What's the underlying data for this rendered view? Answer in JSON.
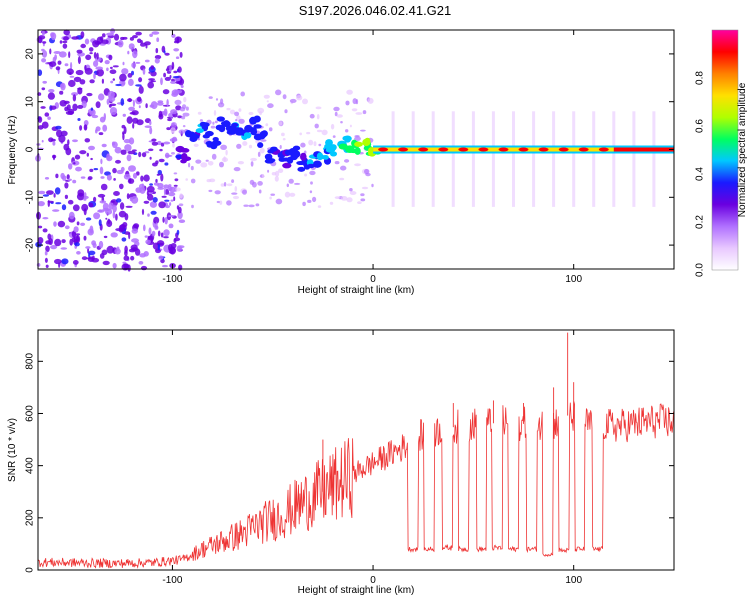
{
  "title": "S197.2026.046.02.41.G21",
  "chart_data": [
    {
      "type": "heatmap",
      "name": "spectrogram",
      "xlabel": "Height of straight line (km)",
      "ylabel": "Frequency (Hz)",
      "xlim": [
        -167,
        150
      ],
      "ylim": [
        -25,
        25
      ],
      "x_ticks": [
        -100,
        0,
        100
      ],
      "y_ticks": [
        20,
        10,
        0,
        -10,
        -20
      ],
      "colorbar": {
        "label": "Normalized spectral amplitude",
        "range": [
          0,
          1
        ],
        "ticks": [
          "0.0",
          "0.2",
          "0.4",
          "0.6",
          "0.8"
        ],
        "tick_values": [
          0,
          0.2,
          0.4,
          0.6,
          0.8
        ],
        "colors": [
          "#ffffff",
          "#e8c8ff",
          "#b070ff",
          "#6a00e0",
          "#1a1aff",
          "#00c8ff",
          "#00ff60",
          "#b0ff00",
          "#ffe000",
          "#ff8000",
          "#ff0000",
          "#ff00a0"
        ]
      },
      "ridge": [
        {
          "x": -95,
          "y": -1,
          "a": 0.25
        },
        {
          "x": -90,
          "y": 3,
          "a": 0.3
        },
        {
          "x": -85,
          "y": 4,
          "a": 0.32
        },
        {
          "x": -80,
          "y": 2,
          "a": 0.3
        },
        {
          "x": -75,
          "y": 5,
          "a": 0.33
        },
        {
          "x": -70,
          "y": 4,
          "a": 0.32
        },
        {
          "x": -65,
          "y": 3,
          "a": 0.34
        },
        {
          "x": -60,
          "y": 5,
          "a": 0.32
        },
        {
          "x": -55,
          "y": 2,
          "a": 0.3
        },
        {
          "x": -50,
          "y": -1,
          "a": 0.3
        },
        {
          "x": -45,
          "y": -2,
          "a": 0.3
        },
        {
          "x": -40,
          "y": -1,
          "a": 0.32
        },
        {
          "x": -35,
          "y": -3,
          "a": 0.3
        },
        {
          "x": -30,
          "y": -2,
          "a": 0.35
        },
        {
          "x": -25,
          "y": -1,
          "a": 0.38
        },
        {
          "x": -20,
          "y": 0,
          "a": 0.42
        },
        {
          "x": -15,
          "y": 1,
          "a": 0.45
        },
        {
          "x": -10,
          "y": 0,
          "a": 0.5
        },
        {
          "x": -5,
          "y": 1,
          "a": 0.55
        },
        {
          "x": 0,
          "y": 0,
          "a": 0.55
        }
      ],
      "harmonic_lines_x": [
        10,
        20,
        30,
        40,
        50,
        60,
        70,
        80,
        90,
        100,
        110,
        120,
        130,
        140
      ]
    },
    {
      "type": "line",
      "name": "snr",
      "xlabel": "Height of straight line (km)",
      "ylabel": "SNR (10 * v/v)",
      "xlim": [
        -167,
        150
      ],
      "ylim": [
        0,
        920
      ],
      "x_ticks": [
        -100,
        0,
        100
      ],
      "y_ticks": [
        0,
        200,
        400,
        600,
        800
      ],
      "color": "#ee3333",
      "series": [
        {
          "name": "SNR",
          "x": [
            -167,
            -150,
            -130,
            -110,
            -95,
            -85,
            -75,
            -65,
            -55,
            -45,
            -35,
            -25,
            -15,
            -5,
            5,
            15,
            20,
            25,
            35,
            45,
            55,
            65,
            75,
            85,
            90,
            95,
            100,
            105,
            110,
            115,
            120,
            130,
            140,
            150
          ],
          "y": [
            30,
            28,
            25,
            28,
            40,
            80,
            110,
            140,
            180,
            210,
            260,
            300,
            340,
            390,
            430,
            470,
            500,
            520,
            540,
            555,
            560,
            565,
            560,
            555,
            560,
            600,
            580,
            560,
            560,
            560,
            550,
            560,
            570,
            570
          ]
        }
      ],
      "dropouts": [
        {
          "x": 20,
          "y": 80
        },
        {
          "x": 28,
          "y": 80
        },
        {
          "x": 37,
          "y": 85
        },
        {
          "x": 45,
          "y": 80
        },
        {
          "x": 54,
          "y": 80
        },
        {
          "x": 62,
          "y": 85
        },
        {
          "x": 70,
          "y": 80
        },
        {
          "x": 79,
          "y": 80
        },
        {
          "x": 87,
          "y": 60
        },
        {
          "x": 95,
          "y": 75
        },
        {
          "x": 103,
          "y": 80
        },
        {
          "x": 112,
          "y": 80
        }
      ],
      "spikes": [
        {
          "x": -25,
          "y": 500
        },
        {
          "x": 97,
          "y": 910
        },
        {
          "x": 90,
          "y": 700
        },
        {
          "x": 100,
          "y": 720
        },
        {
          "x": 40,
          "y": 640
        },
        {
          "x": 60,
          "y": 650
        },
        {
          "x": 75,
          "y": 640
        }
      ]
    }
  ]
}
